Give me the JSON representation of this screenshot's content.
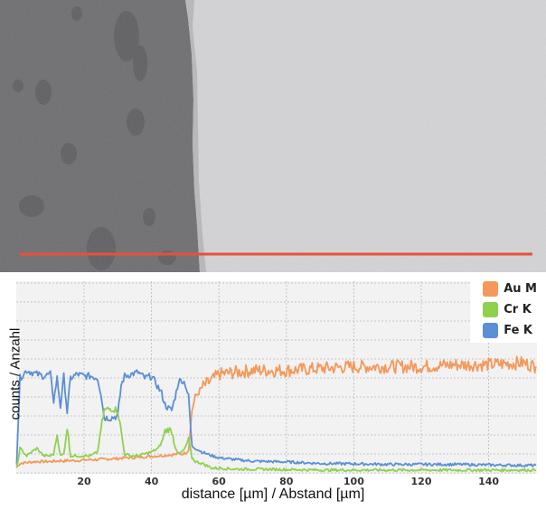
{
  "image": {
    "description": "SEM cross-section micrograph with line-scan marker",
    "scan_line_color": "#e8503a",
    "dark_phase_color": "#6e6e70",
    "light_phase_color": "#d3d3d5"
  },
  "legend": {
    "items": [
      {
        "label": "Au M",
        "color": "#f4995a"
      },
      {
        "label": "Cr K",
        "color": "#8fd14f"
      },
      {
        "label": "Fe K",
        "color": "#5b8fd6"
      }
    ]
  },
  "axes": {
    "xlabel": "distance [µm] / Abstand [µm]",
    "ylabel": "counts / Anzahl",
    "xticks": [
      "20",
      "40",
      "60",
      "80",
      "100",
      "120",
      "140"
    ]
  },
  "chart_data": {
    "type": "line",
    "title": "",
    "xlabel": "distance [µm] / Abstand [µm]",
    "ylabel": "counts / Anzahl",
    "xlim": [
      0,
      154
    ],
    "ylim": [
      0,
      10
    ],
    "grid": true,
    "legend_position": "top-right",
    "x": [
      0,
      1,
      3,
      6,
      8,
      10,
      11,
      12,
      13,
      14,
      15,
      16,
      18,
      20,
      22,
      24,
      25,
      26,
      28,
      30,
      31,
      32,
      34,
      36,
      38,
      40,
      42,
      43,
      44,
      45,
      46,
      47,
      48,
      49,
      50,
      51,
      52,
      53,
      55,
      58,
      60,
      65,
      70,
      80,
      90,
      100,
      110,
      120,
      130,
      140,
      150,
      154
    ],
    "series": [
      {
        "name": "Fe K",
        "color": "#5b8fd6",
        "values": [
          0.5,
          5.0,
          5.4,
          5.2,
          5.1,
          5.2,
          3.8,
          5.0,
          3.5,
          5.1,
          3.2,
          5.0,
          5.2,
          5.1,
          5.1,
          5.0,
          4.2,
          2.9,
          2.9,
          3.0,
          4.6,
          5.1,
          5.2,
          5.3,
          5.0,
          5.1,
          4.5,
          4.2,
          3.6,
          3.4,
          3.3,
          4.0,
          4.8,
          4.9,
          4.7,
          4.0,
          1.4,
          1.3,
          1.1,
          0.9,
          0.8,
          0.7,
          0.62,
          0.58,
          0.5,
          0.48,
          0.45,
          0.45,
          0.45,
          0.42,
          0.4,
          0.4
        ]
      },
      {
        "name": "Cr K",
        "color": "#8fd14f",
        "values": [
          0.2,
          1.3,
          0.9,
          1.3,
          0.9,
          0.9,
          1.0,
          2.0,
          0.9,
          1.0,
          2.4,
          0.9,
          0.9,
          0.9,
          0.9,
          1.1,
          2.3,
          3.3,
          3.4,
          3.3,
          2.2,
          1.0,
          0.9,
          0.9,
          1.0,
          1.1,
          1.3,
          1.6,
          2.2,
          2.3,
          2.2,
          1.4,
          1.0,
          1.1,
          1.3,
          1.8,
          0.8,
          0.6,
          0.5,
          0.25,
          0.25,
          0.2,
          0.2,
          0.18,
          0.15,
          0.15,
          0.15,
          0.15,
          0.15,
          0.15,
          0.15,
          0.15
        ]
      },
      {
        "name": "Au M",
        "color": "#f4995a",
        "values": [
          0.3,
          0.5,
          0.55,
          0.6,
          0.6,
          0.6,
          0.62,
          0.62,
          0.65,
          0.62,
          0.65,
          0.65,
          0.65,
          0.68,
          0.7,
          0.7,
          0.72,
          0.72,
          0.75,
          0.75,
          0.78,
          0.8,
          0.8,
          0.82,
          0.85,
          0.88,
          0.9,
          0.92,
          0.92,
          0.95,
          0.95,
          0.98,
          1.0,
          1.0,
          1.05,
          1.2,
          3.3,
          4.0,
          4.5,
          4.9,
          5.2,
          5.3,
          5.4,
          5.4,
          5.5,
          5.6,
          5.6,
          5.6,
          5.7,
          5.7,
          5.8,
          5.6
        ]
      }
    ]
  }
}
